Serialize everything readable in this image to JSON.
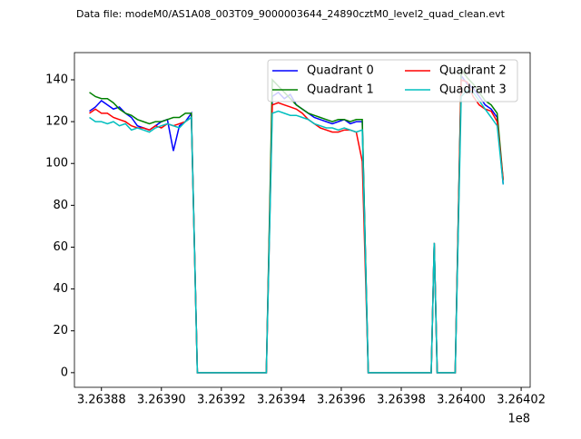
{
  "chart_data": {
    "type": "line",
    "title": "Data file: modeM0/AS1A08_003T09_9000003644_24890cztM0_level2_quad_clean.evt",
    "x": [
      326387600,
      326387800,
      326388000,
      326388200,
      326388400,
      326388600,
      326388800,
      326389000,
      326389200,
      326389400,
      326389600,
      326389800,
      326390000,
      326390200,
      326390400,
      326390600,
      326390800,
      326391000,
      326391200,
      326393500,
      326393700,
      326393900,
      326394100,
      326394300,
      326394500,
      326394700,
      326394900,
      326395100,
      326395300,
      326395500,
      326395700,
      326395900,
      326396100,
      326396300,
      326396500,
      326396700,
      326396900,
      326399000,
      326399100,
      326399200,
      326399800,
      326400000,
      326400200,
      326400400,
      326400600,
      326400800,
      326401000,
      326401200,
      326401400
    ],
    "series": [
      {
        "name": "Quadrant 0",
        "color": "#0000ff",
        "values": [
          125,
          127,
          130,
          128,
          126,
          127,
          124,
          122,
          118,
          117,
          116,
          118,
          120,
          121,
          106,
          118,
          120,
          124,
          0,
          0,
          132,
          134,
          131,
          133,
          128,
          126,
          124,
          122,
          121,
          120,
          119,
          120,
          121,
          119,
          120,
          120,
          0,
          0,
          62,
          0,
          0,
          142,
          138,
          136,
          132,
          128,
          126,
          122,
          90
        ]
      },
      {
        "name": "Quadrant 1",
        "color": "#008000",
        "values": [
          134,
          132,
          131,
          131,
          129,
          126,
          124,
          123,
          121,
          120,
          119,
          120,
          120,
          121,
          122,
          122,
          124,
          124,
          0,
          0,
          140,
          137,
          134,
          131,
          128,
          126,
          124,
          123,
          122,
          121,
          120,
          121,
          121,
          120,
          121,
          121,
          0,
          0,
          62,
          0,
          0,
          145,
          141,
          138,
          134,
          130,
          128,
          124,
          92
        ]
      },
      {
        "name": "Quadrant 2",
        "color": "#ff0000",
        "values": [
          124,
          126,
          124,
          124,
          122,
          121,
          120,
          118,
          117,
          117,
          116,
          118,
          117,
          119,
          118,
          119,
          120,
          122,
          0,
          0,
          128,
          129,
          128,
          127,
          126,
          124,
          121,
          119,
          117,
          116,
          115,
          115,
          116,
          116,
          115,
          101,
          0,
          0,
          62,
          0,
          0,
          140,
          139,
          132,
          128,
          126,
          125,
          120,
          92
        ]
      },
      {
        "name": "Quadrant 3",
        "color": "#00bfbf",
        "values": [
          122,
          120,
          120,
          119,
          120,
          118,
          119,
          116,
          117,
          116,
          115,
          117,
          118,
          119,
          118,
          117,
          120,
          122,
          0,
          0,
          124,
          125,
          124,
          123,
          123,
          122,
          121,
          119,
          118,
          117,
          117,
          116,
          117,
          116,
          115,
          116,
          0,
          0,
          62,
          0,
          0,
          132,
          135,
          134,
          130,
          126,
          122,
          118,
          90
        ]
      }
    ],
    "xlim": [
      326387100,
      326402300
    ],
    "ylim": [
      -7,
      153
    ],
    "xticks": [
      {
        "value": 326388000,
        "label": "3.26388"
      },
      {
        "value": 326390000,
        "label": "3.26390"
      },
      {
        "value": 326392000,
        "label": "3.26392"
      },
      {
        "value": 326394000,
        "label": "3.26394"
      },
      {
        "value": 326396000,
        "label": "3.26396"
      },
      {
        "value": 326398000,
        "label": "3.26398"
      },
      {
        "value": 326400000,
        "label": "3.26400"
      },
      {
        "value": 326402000,
        "label": "3.26402"
      }
    ],
    "x_offset_label": "1e8",
    "yticks": [
      0,
      20,
      40,
      60,
      80,
      100,
      120,
      140
    ],
    "legend": "upper right",
    "legend_columns": 2
  }
}
